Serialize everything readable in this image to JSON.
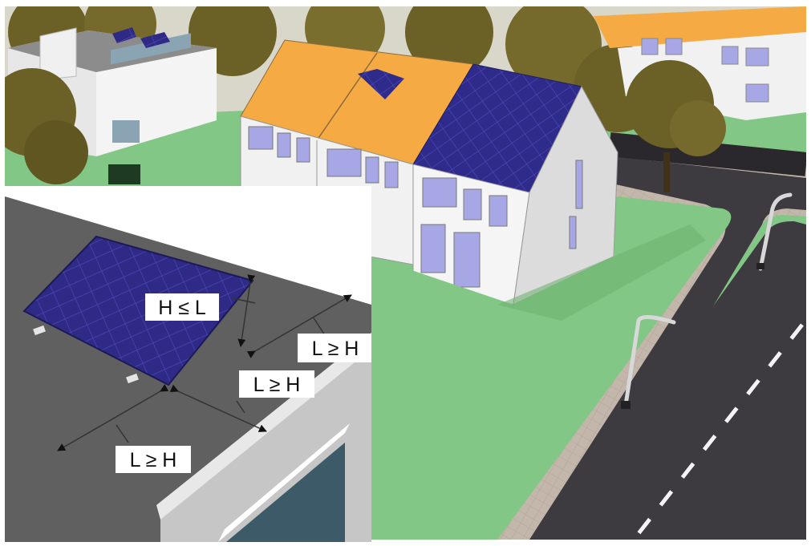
{
  "colors": {
    "sky": "#d9d7c9",
    "grass": "#82c785",
    "orange_roof": "#f6aa43",
    "solar_panel": "#2e2a86",
    "solar_grid": "#4b48b7",
    "road": "#3d3a40",
    "sidewalk": "#c3b6aa",
    "wall_light": "#f1f1f1",
    "wall_shade": "#dcdcdc",
    "window": "#a7a7e6",
    "flat_roof": "#606060",
    "tree": "#6b6126"
  },
  "icons": [
    "solar-panel-icon",
    "street-lamp-icon",
    "tree-icon",
    "dimension-arrow-icon"
  ],
  "inset": {
    "labels": {
      "height_rule": "H ≤ L",
      "front_spacing": "L ≥ H",
      "side_spacing": "L ≥ H",
      "bottom_spacing": "L ≥ H"
    }
  }
}
